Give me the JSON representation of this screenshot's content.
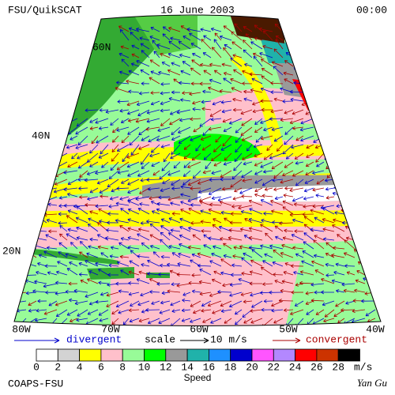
{
  "header": {
    "left": "FSU/QuikSCAT",
    "center": "16 June 2003",
    "right": "00:00"
  },
  "lat_labels": [
    "60N",
    "40N",
    "20N"
  ],
  "lon_labels": [
    "80W",
    "70W",
    "60W",
    "50W",
    "40W"
  ],
  "legend": {
    "divergent": "divergent",
    "scale": "scale",
    "scale_value": "10 m/s",
    "convergent": "convergent"
  },
  "colorbar": {
    "ticks": [
      "0",
      "2",
      "4",
      "6",
      "8",
      "10",
      "12",
      "14",
      "16",
      "18",
      "20",
      "22",
      "24",
      "26",
      "28"
    ],
    "colors": [
      "#ffffff",
      "#d3d3d3",
      "#ffff00",
      "#ffc0cb",
      "#98fb98",
      "#00ff00",
      "#999999",
      "#20b2aa",
      "#1e90ff",
      "#0000cd",
      "#ff55ff",
      "#b388ff",
      "#ff0000",
      "#cc3300",
      "#000000"
    ],
    "unit": "m/s",
    "label": "Speed"
  },
  "footer": {
    "left": "COAPS-FSU",
    "right": "Yan Gu"
  }
}
